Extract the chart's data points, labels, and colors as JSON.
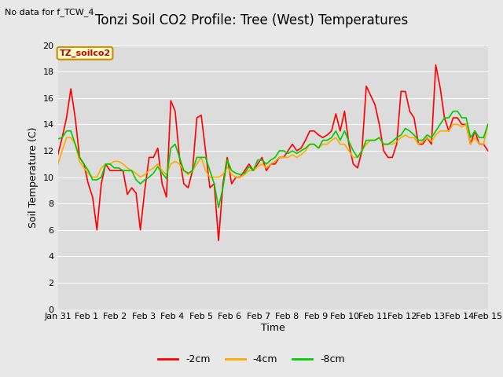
{
  "title": "Tonzi Soil CO2 Profile: Tree (West) Temperatures",
  "subtitle": "No data for f_TCW_4",
  "ylabel": "Soil Temperature (C)",
  "xlabel": "Time",
  "legend_label": "TZ_soilco2",
  "ylim": [
    0,
    20
  ],
  "yticks": [
    0,
    2,
    4,
    6,
    8,
    10,
    12,
    14,
    16,
    18,
    20
  ],
  "xtick_labels": [
    "Jan 31",
    "Feb 1",
    "Feb 2",
    "Feb 3",
    "Feb 4",
    "Feb 5",
    "Feb 6",
    "Feb 7",
    "Feb 8",
    "Feb 9",
    "Feb 10",
    "Feb 11",
    "Feb 12",
    "Feb 13",
    "Feb 14",
    "Feb 15"
  ],
  "line_colors": [
    "#ff0000",
    "#ffaa00",
    "#00cc00"
  ],
  "line_labels": [
    "-2cm",
    "-4cm",
    "-8cm"
  ],
  "background_color": "#e8e8e8",
  "plot_bg_color": "#dcdcdc",
  "title_fontsize": 12,
  "axis_fontsize": 9,
  "tick_fontsize": 8,
  "legend_fontsize": 9,
  "t_2cm": [
    11.7,
    13.0,
    14.5,
    16.7,
    14.5,
    11.5,
    11.0,
    9.5,
    8.5,
    6.0,
    9.5,
    11.0,
    10.5,
    10.5,
    10.5,
    10.5,
    8.7,
    9.2,
    8.8,
    6.0,
    9.0,
    11.5,
    11.5,
    12.2,
    9.5,
    8.5,
    15.8,
    15.0,
    11.5,
    9.5,
    9.2,
    10.5,
    14.5,
    14.7,
    12.0,
    9.2,
    9.5,
    5.2,
    9.5,
    11.5,
    9.5,
    10.0,
    10.0,
    10.5,
    11.0,
    10.5,
    11.0,
    11.5,
    10.5,
    11.0,
    11.0,
    11.5,
    11.5,
    12.0,
    12.5,
    12.0,
    12.2,
    12.8,
    13.5,
    13.5,
    13.2,
    13.0,
    13.2,
    13.5,
    14.8,
    13.5,
    15.0,
    12.5,
    11.0,
    10.7,
    12.0,
    16.9,
    16.2,
    15.5,
    14.0,
    12.0,
    11.5,
    11.5,
    12.5,
    16.5,
    16.5,
    15.0,
    14.5,
    12.5,
    12.5,
    13.0,
    12.5,
    18.5,
    16.8,
    14.5,
    13.5,
    14.5,
    14.5,
    14.0,
    14.0,
    12.5,
    13.5,
    12.5,
    12.5,
    12.0
  ],
  "t_4cm": [
    11.0,
    12.0,
    13.0,
    13.0,
    12.5,
    11.2,
    10.7,
    10.3,
    10.0,
    10.0,
    10.7,
    11.0,
    11.0,
    11.2,
    11.2,
    11.0,
    10.7,
    10.5,
    10.3,
    10.0,
    10.2,
    10.5,
    10.7,
    11.0,
    10.5,
    10.2,
    11.0,
    11.2,
    11.0,
    10.5,
    10.2,
    10.5,
    11.0,
    11.5,
    10.5,
    10.0,
    10.0,
    10.0,
    10.2,
    10.8,
    10.2,
    10.0,
    10.0,
    10.2,
    10.5,
    10.5,
    10.8,
    11.0,
    10.7,
    11.0,
    11.2,
    11.5,
    11.5,
    11.5,
    11.7,
    11.5,
    11.7,
    12.0,
    12.5,
    12.5,
    12.2,
    12.5,
    12.5,
    12.8,
    13.0,
    12.5,
    12.5,
    12.0,
    11.5,
    11.5,
    12.0,
    12.5,
    12.8,
    12.8,
    13.0,
    12.5,
    12.5,
    12.5,
    12.7,
    13.0,
    13.2,
    13.0,
    13.0,
    12.5,
    12.7,
    13.0,
    12.7,
    13.2,
    13.5,
    13.5,
    13.5,
    14.0,
    14.0,
    13.8,
    14.0,
    12.5,
    13.0,
    12.5,
    12.5,
    14.0
  ],
  "t_8cm": [
    12.9,
    13.0,
    13.5,
    13.5,
    12.5,
    11.5,
    11.0,
    10.5,
    9.8,
    9.8,
    10.0,
    11.0,
    11.0,
    10.7,
    10.7,
    10.5,
    10.5,
    10.5,
    9.8,
    9.5,
    9.8,
    10.0,
    10.3,
    10.8,
    10.3,
    9.9,
    12.2,
    12.5,
    11.5,
    10.5,
    10.3,
    10.5,
    11.5,
    11.5,
    11.5,
    10.5,
    9.5,
    7.7,
    9.2,
    11.3,
    10.5,
    10.3,
    10.2,
    10.3,
    10.8,
    10.5,
    11.3,
    11.3,
    11.0,
    11.3,
    11.5,
    12.0,
    12.0,
    11.8,
    12.0,
    11.8,
    12.0,
    12.2,
    12.5,
    12.5,
    12.2,
    12.8,
    12.8,
    13.0,
    13.5,
    12.8,
    13.5,
    12.7,
    12.0,
    11.5,
    12.0,
    12.8,
    12.8,
    12.8,
    13.0,
    12.5,
    12.5,
    12.7,
    13.0,
    13.2,
    13.7,
    13.5,
    13.2,
    12.8,
    12.8,
    13.2,
    13.0,
    13.5,
    14.0,
    14.5,
    14.5,
    15.0,
    15.0,
    14.5,
    14.5,
    13.0,
    13.5,
    13.0,
    13.0,
    14.0
  ]
}
